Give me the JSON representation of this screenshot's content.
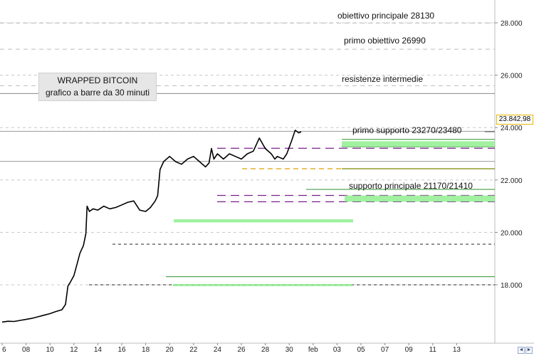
{
  "chart_data": {
    "type": "line",
    "title": "WRAPPED BITCOIN",
    "subtitle": "grafico a barre da 30 minuti",
    "xlabel": "",
    "ylabel": "",
    "ylim": [
      15800,
      29000
    ],
    "x_tick_labels": [
      "6",
      "08",
      "10",
      "12",
      "14",
      "16",
      "18",
      "20",
      "22",
      "24",
      "26",
      "28",
      "30",
      "feb",
      "03",
      "05",
      "07",
      "09",
      "11",
      "13"
    ],
    "y_ticks": [
      18000,
      20000,
      22000,
      24000,
      26000,
      28000
    ],
    "y_tick_labels": [
      "18.000",
      "20.000",
      "22.000",
      "24.000",
      "26.000",
      "28.000"
    ],
    "last_price": 23842.98,
    "last_price_label": "23.842,98",
    "grid": "horizontal dashed",
    "series": [
      {
        "values": [
          [
            0,
            16580
          ],
          [
            0.5,
            16610
          ],
          [
            1,
            16600
          ],
          [
            1.5,
            16640
          ],
          [
            2,
            16680
          ],
          [
            2.5,
            16720
          ],
          [
            3,
            16780
          ],
          [
            3.5,
            16840
          ],
          [
            4,
            16900
          ],
          [
            4.5,
            16980
          ],
          [
            5,
            17050
          ],
          [
            5.3,
            17250
          ],
          [
            5.5,
            17950
          ],
          [
            5.7,
            18100
          ],
          [
            6,
            18350
          ],
          [
            6.3,
            18850
          ],
          [
            6.5,
            19200
          ],
          [
            6.8,
            19500
          ],
          [
            7,
            19950
          ],
          [
            7.1,
            21000
          ],
          [
            7.3,
            20800
          ],
          [
            7.6,
            20900
          ],
          [
            8,
            20850
          ],
          [
            8.5,
            21000
          ],
          [
            9,
            20900
          ],
          [
            9.5,
            20950
          ],
          [
            10,
            21050
          ],
          [
            10.5,
            21150
          ],
          [
            11,
            21200
          ],
          [
            11.5,
            20850
          ],
          [
            12,
            20800
          ],
          [
            12.4,
            20950
          ],
          [
            12.8,
            21200
          ],
          [
            13,
            21400
          ],
          [
            13.2,
            22400
          ],
          [
            13.5,
            22700
          ],
          [
            14,
            22900
          ],
          [
            14.5,
            22700
          ],
          [
            15,
            22600
          ],
          [
            15.5,
            22800
          ],
          [
            16,
            22900
          ],
          [
            16.5,
            22700
          ],
          [
            17,
            22500
          ],
          [
            17.3,
            22650
          ],
          [
            17.5,
            23200
          ],
          [
            17.7,
            22800
          ],
          [
            18,
            23000
          ],
          [
            18.5,
            22800
          ],
          [
            19,
            23000
          ],
          [
            19.5,
            22900
          ],
          [
            20,
            22800
          ],
          [
            20.5,
            23000
          ],
          [
            21,
            23100
          ],
          [
            21.5,
            23600
          ],
          [
            22,
            23200
          ],
          [
            22.5,
            23000
          ],
          [
            22.8,
            22800
          ],
          [
            23,
            22900
          ],
          [
            23.5,
            22800
          ],
          [
            23.8,
            23000
          ],
          [
            24.2,
            23500
          ],
          [
            24.5,
            23900
          ],
          [
            24.8,
            23800
          ],
          [
            25.0,
            23842.98
          ]
        ]
      }
    ],
    "levels": [
      {
        "label": "obiettivo principale 28130",
        "value": 28130
      },
      {
        "label": "primo obiettivo 26990",
        "value": 26990
      },
      {
        "label": "resistenze intermedie",
        "value": 25600
      },
      {
        "label": "primo supporto 23270/23480",
        "value": 23480
      },
      {
        "label": "supporto principale 21170/21410",
        "value": 21290
      }
    ]
  },
  "controls": {
    "scroll_left_glyph": "◄",
    "scroll_right_glyph": "►"
  }
}
